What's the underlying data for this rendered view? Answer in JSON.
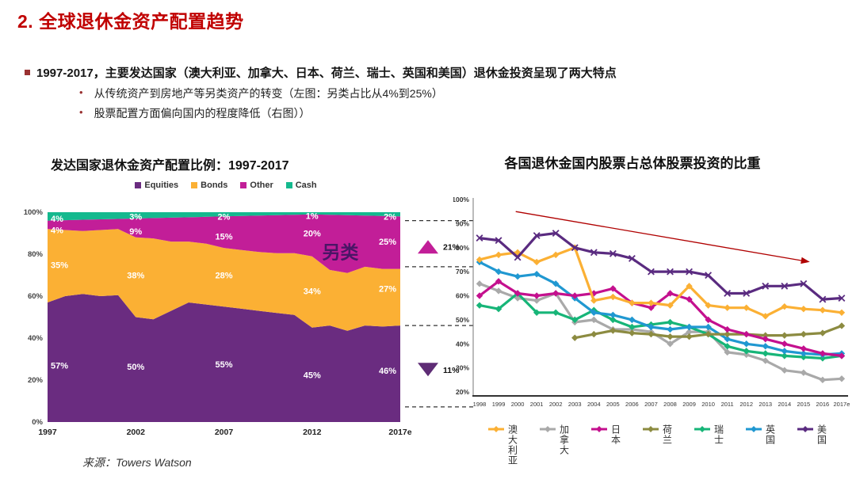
{
  "slide": {
    "title": "2. 全球退休金资产配置趋势",
    "bullet_main": "1997-2017，主要发达国家（澳大利亚、加拿大、日本、荷兰、瑞士、英国和美国）退休金投资呈现了两大特点",
    "sub_bullets": [
      "从传统资产到房地产等另类资产的转变（左图：另类占比从4%到25%）",
      "股票配置方面偏向国内的程度降低（右图））"
    ],
    "source_label": "来源：",
    "source_value": "Towers Watson"
  },
  "chart_data": [
    {
      "type": "area",
      "stacked": true,
      "title": "发达国家退休金资产配置比例：1997-2017",
      "ylim": [
        0,
        100
      ],
      "x_years": [
        "1997",
        "1998",
        "1999",
        "2000",
        "2001",
        "2002",
        "2003",
        "2004",
        "2005",
        "2006",
        "2007",
        "2008",
        "2009",
        "2010",
        "2011",
        "2012",
        "2013",
        "2014",
        "2015",
        "2016",
        "2017e"
      ],
      "x_ticks": [
        {
          "i": 0,
          "label": "1997"
        },
        {
          "i": 5,
          "label": "2002"
        },
        {
          "i": 10,
          "label": "2007"
        },
        {
          "i": 15,
          "label": "2012"
        },
        {
          "i": 20,
          "label": "2017e"
        }
      ],
      "y_ticks": [
        {
          "v": 0,
          "label": "0%"
        },
        {
          "v": 20,
          "label": "20%"
        },
        {
          "v": 40,
          "label": "40%"
        },
        {
          "v": 60,
          "label": "60%"
        },
        {
          "v": 80,
          "label": "80%"
        },
        {
          "v": 100,
          "label": "100%"
        }
      ],
      "series": [
        {
          "id": "equities",
          "label": "Equities",
          "color": "#6A2C80",
          "values": [
            57,
            60,
            61,
            60,
            60.5,
            50,
            49,
            53,
            57,
            56,
            55,
            54,
            53,
            52,
            51,
            45,
            46,
            43.5,
            46,
            45.5,
            46
          ]
        },
        {
          "id": "bonds",
          "label": "Bonds",
          "color": "#FBB034",
          "values": [
            35,
            31.5,
            30,
            31.5,
            31.5,
            38,
            38.5,
            33,
            29,
            29,
            28,
            28,
            28,
            28.5,
            29.5,
            34,
            26.5,
            27.5,
            28,
            27.5,
            27
          ]
        },
        {
          "id": "other",
          "label": "Other",
          "color": "#C21E98",
          "values": [
            4,
            4.7,
            5.4,
            5.1,
            4.8,
            9,
            9.7,
            11.4,
            11.6,
            12.8,
            15,
            16.2,
            17.4,
            18.1,
            18.3,
            20,
            26.3,
            27.6,
            24.4,
            25.2,
            25
          ]
        },
        {
          "id": "cash",
          "label": "Cash",
          "color": "#14B98E",
          "values": [
            4,
            3.8,
            3.6,
            3.4,
            3.2,
            3,
            2.8,
            2.6,
            2.4,
            2.2,
            2,
            1.8,
            1.6,
            1.4,
            1.2,
            1,
            1.2,
            1.4,
            1.6,
            1.8,
            2
          ]
        }
      ],
      "value_labels": [
        {
          "i": 0,
          "align": "start",
          "items": [
            {
              "text": "57%",
              "v": 27
            },
            {
              "text": "35%",
              "v": 75
            },
            {
              "text": "4%",
              "v": 91.5
            },
            {
              "text": "4%",
              "v": 97
            }
          ]
        },
        {
          "i": 5,
          "align": "middle",
          "items": [
            {
              "text": "50%",
              "v": 26.5
            },
            {
              "text": "38%",
              "v": 70
            },
            {
              "text": "9%",
              "v": 91
            },
            {
              "text": "3%",
              "v": 98
            }
          ]
        },
        {
          "i": 10,
          "align": "middle",
          "items": [
            {
              "text": "55%",
              "v": 27.5
            },
            {
              "text": "28%",
              "v": 70
            },
            {
              "text": "15%",
              "v": 88.5
            },
            {
              "text": "2%",
              "v": 98
            }
          ]
        },
        {
          "i": 15,
          "align": "middle",
          "items": [
            {
              "text": "45%",
              "v": 22.5
            },
            {
              "text": "34%",
              "v": 62.5
            },
            {
              "text": "20%",
              "v": 90
            },
            {
              "text": "1%",
              "v": 98.3
            }
          ]
        },
        {
          "i": 20,
          "align": "end",
          "items": [
            {
              "text": "46%",
              "v": 24.5
            },
            {
              "text": "27%",
              "v": 63.5
            },
            {
              "text": "25%",
              "v": 86
            },
            {
              "text": "2%",
              "v": 98
            }
          ]
        }
      ],
      "dash_levels": [
        96,
        74,
        46,
        7.2
      ],
      "annotations": {
        "note": {
          "text": "另类",
          "i": 16.6,
          "v": 78,
          "color": "#4A1566"
        },
        "up_triangle": {
          "label": "21%",
          "v": 83.5,
          "color": "#C21E98"
        },
        "down_triangle": {
          "label": "11%",
          "v": 25,
          "color": "#5E2C75"
        }
      },
      "legend_position": "top"
    },
    {
      "type": "line",
      "title": "各国退休金国内股票占总体股票投资的比重",
      "ylim": [
        20,
        100
      ],
      "x_labels": [
        "1998",
        "1999",
        "2000",
        "2001",
        "2002",
        "2003",
        "2004",
        "2005",
        "2006",
        "2007",
        "2008",
        "2009",
        "2010",
        "2011",
        "2012",
        "2013",
        "2014",
        "2015",
        "2016",
        "2017e"
      ],
      "y_ticks": [
        {
          "v": 20,
          "label": "20%"
        },
        {
          "v": 30,
          "label": "30%"
        },
        {
          "v": 40,
          "label": "40%"
        },
        {
          "v": 50,
          "label": "50%"
        },
        {
          "v": 60,
          "label": "60%"
        },
        {
          "v": 70,
          "label": "70%"
        },
        {
          "v": 80,
          "label": "80%"
        },
        {
          "v": 90,
          "label": "90%"
        },
        {
          "v": 100,
          "label": "100%"
        }
      ],
      "series": [
        {
          "id": "australia",
          "label": "澳大利亚",
          "color": "#FBB034",
          "marker": "diamond",
          "values": [
            75,
            77,
            78,
            74,
            77,
            80,
            58,
            59.5,
            57,
            57,
            56,
            64,
            56,
            55,
            55,
            51.5,
            55.5,
            54.5,
            54,
            53
          ]
        },
        {
          "id": "canada",
          "label": "加拿大",
          "color": "#A9A9A9",
          "marker": "diamond",
          "values": [
            65,
            62,
            59,
            58,
            61,
            49,
            50,
            46,
            46,
            45,
            40,
            45,
            45,
            36.5,
            35.5,
            33,
            29,
            28,
            25,
            25.5
          ]
        },
        {
          "id": "japan",
          "label": "日本",
          "color": "#C4108E",
          "marker": "diamond",
          "values": [
            60,
            66,
            61,
            60,
            61,
            60,
            61,
            63,
            57,
            55,
            61,
            58.5,
            50,
            46,
            44,
            42,
            40,
            38,
            36,
            35
          ]
        },
        {
          "id": "netherlands",
          "label": "荷兰",
          "color": "#8C8B41",
          "marker": "diamond",
          "values": [
            null,
            null,
            null,
            null,
            null,
            42.5,
            44,
            45.5,
            44.5,
            44,
            43,
            43,
            44,
            44,
            44,
            43.5,
            43.5,
            44,
            44.5,
            47.5
          ]
        },
        {
          "id": "switzerland",
          "label": "瑞士",
          "color": "#17B578",
          "marker": "diamond",
          "values": [
            56,
            54.5,
            61,
            53,
            53,
            50,
            54,
            50,
            47,
            48,
            49,
            47,
            44,
            39,
            37,
            36,
            35,
            34.5,
            34,
            35
          ]
        },
        {
          "id": "uk",
          "label": "英国",
          "color": "#2098D1",
          "marker": "diamond",
          "values": [
            74,
            70,
            68,
            69,
            65,
            59,
            53,
            52,
            50,
            47,
            46,
            47,
            47,
            42,
            40,
            39,
            37,
            36,
            35.5,
            36
          ]
        },
        {
          "id": "us",
          "label": "美国",
          "color": "#5A2B80",
          "marker": "x",
          "values": [
            84,
            83,
            76,
            85,
            86,
            80,
            78,
            77.5,
            75.5,
            70,
            70,
            70,
            68.5,
            61,
            61,
            64,
            64,
            65,
            58.5,
            59
          ]
        }
      ],
      "draw_order": [
        "canada",
        "switzerland",
        "uk",
        "netherlands",
        "japan",
        "australia",
        "us"
      ],
      "trend_arrow": {
        "from_i": 1.9,
        "from_v": 95,
        "to_i": 17,
        "to_v": 74.5,
        "color": "#B00000"
      },
      "legend_position": "bottom"
    }
  ]
}
